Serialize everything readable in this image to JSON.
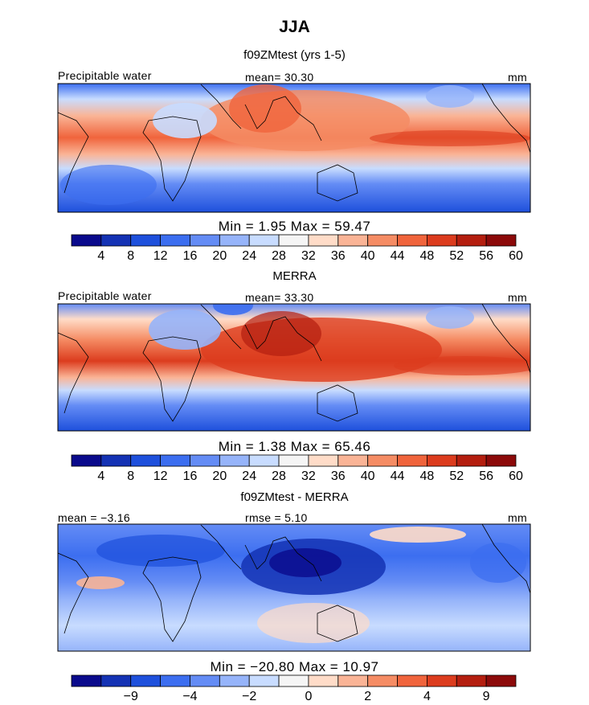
{
  "chart_data": [
    {
      "type": "heatmap",
      "title": "JJA",
      "subtitle": "f09ZMtest (yrs 1-5)",
      "left_label": "Precipitable water",
      "center_label": "mean=  30.30",
      "right_label": "mm",
      "min_max_text": "Min =    1.95 Max =   59.47",
      "stats": {
        "mean": 30.3,
        "min": 1.95,
        "max": 59.47
      },
      "colorbar_ticks": [
        "4",
        "8",
        "12",
        "16",
        "20",
        "24",
        "28",
        "32",
        "36",
        "40",
        "44",
        "48",
        "52",
        "56",
        "60"
      ]
    },
    {
      "type": "heatmap",
      "subtitle": "MERRA",
      "left_label": "Precipitable water",
      "center_label": "mean=  33.30",
      "right_label": "mm",
      "min_max_text": "Min =    1.38 Max =   65.46",
      "stats": {
        "mean": 33.3,
        "min": 1.38,
        "max": 65.46
      },
      "colorbar_ticks": [
        "4",
        "8",
        "12",
        "16",
        "20",
        "24",
        "28",
        "32",
        "36",
        "40",
        "44",
        "48",
        "52",
        "56",
        "60"
      ]
    },
    {
      "type": "heatmap",
      "subtitle": "f09ZMtest - MERRA",
      "left_label": "mean =  −3.16",
      "center_label": "rmse =    5.10",
      "right_label": "mm",
      "min_max_text": "Min = −20.80 Max =   10.97",
      "stats": {
        "mean": -3.16,
        "rmse": 5.1,
        "min": -20.8,
        "max": 10.97
      },
      "colorbar_ticks": [
        "−9",
        "−4",
        "−2",
        "0",
        "2",
        "4",
        "9"
      ]
    }
  ],
  "palette": [
    "#0a0a8c",
    "#1432b4",
    "#1e50dc",
    "#3c6ef0",
    "#648cf5",
    "#96b4fa",
    "#c8dcff",
    "#f5f5f5",
    "#ffdcc8",
    "#fab496",
    "#f58c64",
    "#f0643c",
    "#dc3c1e",
    "#b41e0f",
    "#8c0a0a"
  ]
}
